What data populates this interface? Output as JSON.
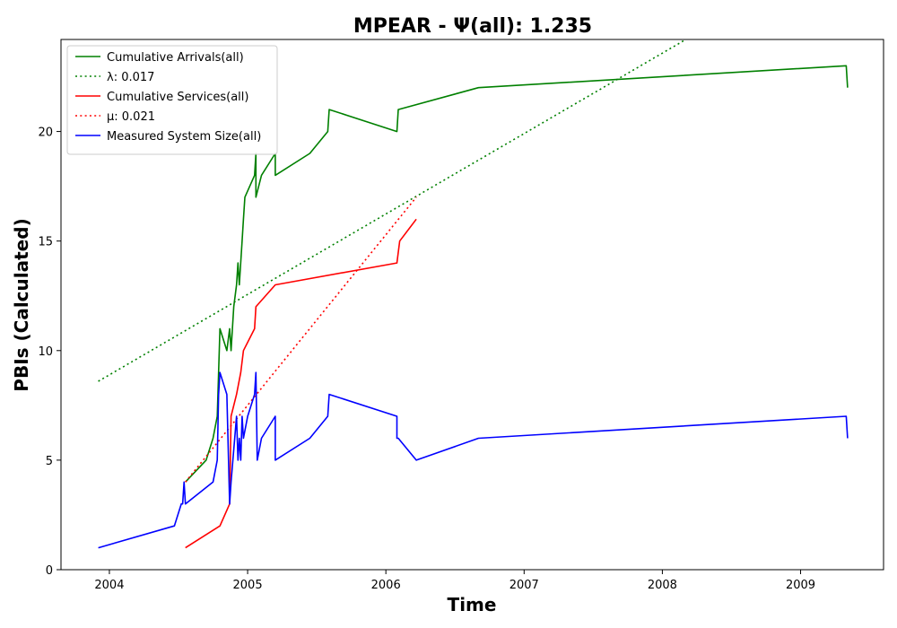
{
  "chart_data": {
    "type": "line",
    "title": "MPEAR -  Ψ(all): 1.235",
    "xlabel": "Time",
    "ylabel": "PBIs (Calculated)",
    "xlim": [
      2003.65,
      2009.6
    ],
    "ylim": [
      0,
      24.2
    ],
    "x_ticks": [
      2004,
      2005,
      2006,
      2007,
      2008,
      2009
    ],
    "x_tick_labels": [
      "2004",
      "2005",
      "2006",
      "2007",
      "2008",
      "2009"
    ],
    "y_ticks": [
      0,
      5,
      10,
      15,
      20
    ],
    "y_tick_labels": [
      "0",
      "5",
      "10",
      "15",
      "20"
    ],
    "grid": false,
    "legend_position": "top-left",
    "series": [
      {
        "name": "Cumulative Arrivals(all)",
        "color": "#008000",
        "style": "solid",
        "x": [
          2004.55,
          2004.7,
          2004.75,
          2004.78,
          2004.8,
          2004.85,
          2004.87,
          2004.88,
          2004.9,
          2004.92,
          2004.93,
          2004.94,
          2004.96,
          2004.97,
          2004.98,
          2005.05,
          2005.06,
          2005.06,
          2005.1,
          2005.2,
          2005.2,
          2005.45,
          2005.58,
          2005.59,
          2006.08,
          2006.09,
          2006.67,
          2009.33,
          2009.34
        ],
        "y": [
          4,
          5,
          6,
          7,
          11,
          10,
          11,
          10,
          12,
          13,
          14,
          13,
          15,
          16,
          17,
          18,
          19,
          17,
          18,
          19,
          18,
          19,
          20,
          21,
          20,
          21,
          22,
          23,
          22
        ]
      },
      {
        "name": "λ: 0.017",
        "color": "#008000",
        "style": "dotted",
        "x": [
          2003.92,
          2008.17
        ],
        "y": [
          8.6,
          24.2
        ]
      },
      {
        "name": "Cumulative Services(all)",
        "color": "#ff0000",
        "style": "solid",
        "x": [
          2004.55,
          2004.8,
          2004.87,
          2004.88,
          2004.92,
          2004.95,
          2004.97,
          2005.05,
          2005.06,
          2005.2,
          2006.08,
          2006.1,
          2006.22
        ],
        "y": [
          1,
          2,
          3,
          7,
          8,
          9,
          10,
          11,
          12,
          13,
          14,
          15,
          16
        ]
      },
      {
        "name": "μ: 0.021",
        "color": "#ff0000",
        "style": "dotted",
        "x": [
          2004.55,
          2006.22
        ],
        "y": [
          4.0,
          17.0
        ]
      },
      {
        "name": "Measured System Size(all)",
        "color": "#0000ff",
        "style": "solid",
        "x": [
          2003.92,
          2004.47,
          2004.52,
          2004.53,
          2004.54,
          2004.55,
          2004.75,
          2004.78,
          2004.79,
          2004.8,
          2004.8,
          2004.85,
          2004.87,
          2004.88,
          2004.92,
          2004.93,
          2004.94,
          2004.95,
          2004.96,
          2004.97,
          2005.0,
          2005.05,
          2005.06,
          2005.07,
          2005.1,
          2005.2,
          2005.2,
          2005.45,
          2005.58,
          2005.59,
          2006.08,
          2006.08,
          2006.09,
          2006.22,
          2006.67,
          2009.33,
          2009.34
        ],
        "y": [
          1,
          2,
          3,
          3,
          4,
          3,
          4,
          5,
          8,
          9,
          9,
          8,
          3,
          4,
          7,
          5,
          6,
          5,
          7,
          6,
          7,
          8,
          9,
          5,
          6,
          7,
          5,
          6,
          7,
          8,
          7,
          6,
          6,
          5,
          6,
          7,
          6
        ]
      }
    ]
  }
}
